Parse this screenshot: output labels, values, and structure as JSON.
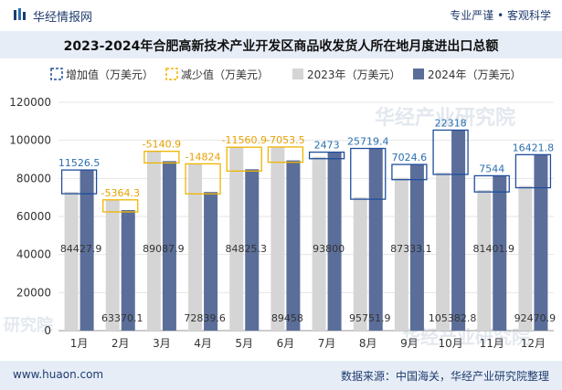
{
  "header": {
    "brand": "华经情报网",
    "tagline": "专业严谨 • 客观科学",
    "title": "2023-2024年合肥高新技术产业开发区商品收发货人所在地月度进出口总额"
  },
  "footer": {
    "website": "www.huaon.com",
    "source": "数据来源：中国海关，华经产业研究院整理"
  },
  "watermarks": [
    "华经产业研究院",
    "华经产业研究院",
    "研究院"
  ],
  "colors": {
    "increase": "#1f4e9c",
    "decrease": "#f0b400",
    "series2023": "#d5d5d5",
    "series2024": "#5b6e9a",
    "increase_text": "#2a6fb0",
    "decrease_text": "#e6a100"
  },
  "chart_data": {
    "type": "bar",
    "categories": [
      "1月",
      "2月",
      "3月",
      "4月",
      "5月",
      "6月",
      "7月",
      "8月",
      "9月",
      "10月",
      "11月",
      "12月"
    ],
    "ylim": [
      0,
      120000
    ],
    "yticks": [
      0,
      20000,
      40000,
      60000,
      80000,
      100000,
      120000
    ],
    "legend": [
      "增加值（万美元）",
      "减少值（万美元）",
      "2023年（万美元）",
      "2024年（万美元）"
    ],
    "series": [
      {
        "name": "2023年（万美元）",
        "values": [
          72901.4,
          68734.4,
          94228.8,
          87663.6,
          96386.2,
          96511.5,
          91327,
          70032.5,
          80308.6,
          83064.8,
          73857.9,
          76049.1
        ]
      },
      {
        "name": "2024年（万美元）",
        "values": [
          84427.9,
          63370.1,
          89087.9,
          72839.6,
          84825.3,
          89458,
          93800,
          95751.9,
          87333.1,
          105382.8,
          81401.9,
          92470.9
        ]
      }
    ],
    "change": [
      11526.5,
      -5364.3,
      -5140.9,
      -14824,
      -11560.9,
      -7053.5,
      2473,
      25719.4,
      7024.6,
      22318,
      7544,
      16421.8
    ],
    "change_labels": [
      "11526.5",
      "-5364.3",
      "-5140.9",
      "-14824",
      "-11560.9",
      "-7053.5",
      "2473",
      "25719.4",
      "7024.6",
      "22318",
      "7544",
      "16421.8"
    ],
    "value_labels_2024": [
      "84427.9",
      "63370.1",
      "89087.9",
      "72839.6",
      "84825.3",
      "89458",
      "93800",
      "95751.9",
      "87333.1",
      "105382.8",
      "81401.9",
      "92470.9"
    ]
  }
}
